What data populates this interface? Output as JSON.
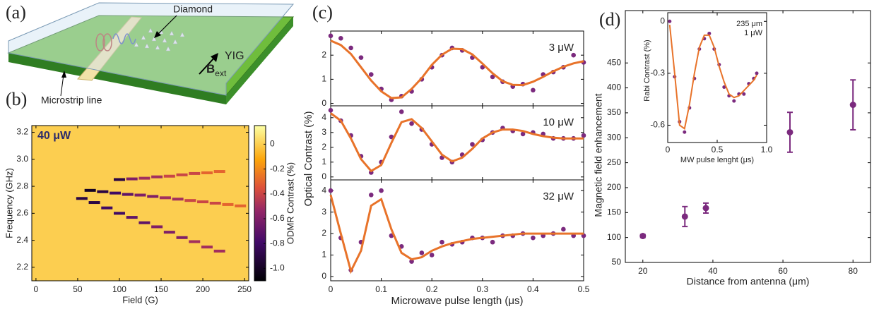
{
  "chart_data": [
    {
      "type": "diagram",
      "panel_label": "(a)",
      "labels": {
        "diamond": "Diamond",
        "yig": "YIG",
        "b": "B",
        "b_sub": "ext",
        "microstrip": "Microstrip line"
      }
    },
    {
      "type": "heatmap",
      "panel_label": "(b)",
      "annotation": "40 μW",
      "xlabel": "Field (G)",
      "ylabel": "Frequency (GHz)",
      "colorbar_label": "ODMR Contrast (%)",
      "xlim": [
        -5,
        255
      ],
      "xticks": [
        0,
        50,
        100,
        150,
        200,
        250
      ],
      "ylim": [
        2.1,
        3.25
      ],
      "yticks": [
        2.2,
        2.4,
        2.6,
        2.8,
        {
          "value": 3,
          "label": "3.0"
        },
        3.2
      ],
      "zlim": [
        -1.1,
        0.15
      ],
      "zticks": [
        0,
        -0.2,
        -0.4,
        -0.6,
        -0.8,
        {
          "value": -1,
          "label": "-1.0"
        }
      ],
      "background_value": 0,
      "series": [
        {
          "x": [
            100,
            115,
            130,
            145,
            160,
            175,
            190,
            205,
            220
          ],
          "y": [
            2.85,
            2.855,
            2.86,
            2.87,
            2.875,
            2.885,
            2.895,
            2.9,
            2.91
          ],
          "values": [
            -0.9,
            -0.6,
            -0.5,
            -0.5,
            -0.4,
            -0.4,
            -0.4,
            -0.3,
            -0.3
          ]
        },
        {
          "x": [
            65,
            80,
            95,
            110,
            125,
            140,
            155,
            170,
            185,
            200,
            215,
            230,
            245
          ],
          "y": [
            2.77,
            2.76,
            2.75,
            2.74,
            2.735,
            2.725,
            2.715,
            2.705,
            2.695,
            2.685,
            2.675,
            2.665,
            2.655
          ],
          "values": [
            -1.0,
            -0.9,
            -0.8,
            -0.7,
            -0.6,
            -0.6,
            -0.5,
            -0.5,
            -0.4,
            -0.4,
            -0.4,
            -0.3,
            -0.3
          ]
        },
        {
          "x": [
            55,
            70,
            85,
            100,
            115,
            130,
            145,
            160,
            175,
            190,
            205,
            220
          ],
          "y": [
            2.71,
            2.68,
            2.64,
            2.6,
            2.57,
            2.53,
            2.5,
            2.46,
            2.42,
            2.39,
            2.35,
            2.32
          ],
          "values": [
            -0.9,
            -0.9,
            -0.8,
            -0.8,
            -0.7,
            -0.7,
            -0.6,
            -0.6,
            -0.6,
            -0.5,
            -0.5,
            -0.5
          ]
        }
      ]
    },
    {
      "type": "line",
      "panel_label": "(c)",
      "xlabel": "Microwave pulse length (μs)",
      "ylabel": "Optical Contrast (%)",
      "xlim": [
        0,
        0.5
      ],
      "xticks": [
        0,
        0.1,
        0.2,
        0.3,
        0.4,
        0.5
      ],
      "x": [
        0,
        0.02,
        0.04,
        0.06,
        0.08,
        0.1,
        0.12,
        0.14,
        0.16,
        0.18,
        0.2,
        0.22,
        0.24,
        0.26,
        0.28,
        0.3,
        0.32,
        0.34,
        0.36,
        0.38,
        0.4,
        0.42,
        0.44,
        0.46,
        0.48,
        0.5
      ],
      "point_color": "#7b2a7e",
      "fit_color": "#e8732a",
      "panels": [
        {
          "annotation": "3 μW",
          "ylim": [
            -0.1,
            3
          ],
          "yticks": [
            0,
            1,
            2
          ],
          "points": [
            2.8,
            2.7,
            2.3,
            1.9,
            1.2,
            0.6,
            0.15,
            0.3,
            0.5,
            1.0,
            1.5,
            2.0,
            2.3,
            2.2,
            1.9,
            1.5,
            1.1,
            0.9,
            0.7,
            0.8,
            0.55,
            1.2,
            1.3,
            1.5,
            2.0,
            1.7
          ],
          "fit": [
            2.6,
            2.42,
            2.05,
            1.5,
            0.95,
            0.5,
            0.22,
            0.25,
            0.6,
            1.05,
            1.6,
            2.02,
            2.27,
            2.25,
            2.03,
            1.65,
            1.25,
            0.92,
            0.77,
            0.76,
            0.9,
            1.1,
            1.33,
            1.52,
            1.66,
            1.75
          ]
        },
        {
          "annotation": "10 μW",
          "ylim": [
            -0.2,
            4.8
          ],
          "yticks": [
            0,
            1,
            2,
            3,
            4
          ],
          "points": [
            4.5,
            3.8,
            2.8,
            1.4,
            0.3,
            1.0,
            2.7,
            4.4,
            3.6,
            3.2,
            2.2,
            1.3,
            1.0,
            1.5,
            2.2,
            2.5,
            3.0,
            3.3,
            3.1,
            2.9,
            3.0,
            2.9,
            2.6,
            2.6,
            2.6,
            2.8
          ],
          "fit": [
            4.3,
            3.8,
            2.6,
            1.2,
            0.4,
            0.8,
            2.3,
            3.7,
            3.9,
            3.3,
            2.4,
            1.5,
            1.05,
            1.3,
            1.9,
            2.6,
            3.0,
            3.2,
            3.2,
            3.1,
            2.9,
            2.75,
            2.65,
            2.6,
            2.6,
            2.6
          ]
        },
        {
          "annotation": "32 μW",
          "ylim": [
            -0.2,
            4.5
          ],
          "yticks": [
            0,
            1,
            2,
            3,
            4
          ],
          "points": [
            4.0,
            1.8,
            0.3,
            1.6,
            3.8,
            4.0,
            1.9,
            1.4,
            0.7,
            1.1,
            1.0,
            1.6,
            1.5,
            1.6,
            1.8,
            1.8,
            1.6,
            1.9,
            1.9,
            2.0,
            1.8,
            1.9,
            2.0,
            2.2,
            1.9,
            1.9
          ],
          "fit": [
            3.8,
            2.0,
            0.25,
            1.2,
            3.3,
            3.6,
            2.2,
            1.1,
            0.8,
            0.9,
            1.2,
            1.4,
            1.55,
            1.65,
            1.75,
            1.8,
            1.85,
            1.9,
            1.95,
            2.0,
            2.0,
            2.0,
            2.0,
            2.0,
            2.0,
            2.0
          ]
        }
      ]
    },
    {
      "type": "errorbar",
      "panel_label": "(d)",
      "xlabel": "Distance from antenna (μm)",
      "ylabel": "Magnetic field enhancement",
      "xlim": [
        15,
        85
      ],
      "xticks": [
        20,
        40,
        60,
        80
      ],
      "ylim": [
        50,
        555
      ],
      "yticks": [
        50,
        100,
        150,
        200,
        250,
        300,
        350,
        400,
        450
      ],
      "color": "#7b2a7e",
      "x": [
        20,
        32,
        38,
        62,
        80
      ],
      "values": [
        103,
        142,
        159,
        311,
        366
      ],
      "errors": [
        3,
        20,
        10,
        40,
        50
      ],
      "inset": {
        "xlabel": "MW pulse lenght (μs)",
        "ylabel": "Rabi Contrast (%)",
        "annotations": [
          "235 μm",
          "1 μW"
        ],
        "xlim": [
          0,
          1
        ],
        "xticks": [
          0,
          0.5,
          {
            "value": 1,
            "label": "1.0"
          }
        ],
        "ylim": [
          -0.7,
          0.05
        ],
        "yticks": [
          0,
          -0.3,
          -0.6
        ],
        "x": [
          0.02,
          0.07,
          0.12,
          0.17,
          0.22,
          0.27,
          0.32,
          0.37,
          0.42,
          0.47,
          0.52,
          0.57,
          0.62,
          0.67,
          0.72,
          0.77,
          0.82,
          0.87,
          0.9
        ],
        "points": [
          0,
          -0.32,
          -0.58,
          -0.64,
          -0.5,
          -0.33,
          -0.16,
          -0.1,
          -0.07,
          -0.16,
          -0.25,
          -0.38,
          -0.43,
          -0.46,
          -0.42,
          -0.42,
          -0.36,
          -0.33,
          -0.3
        ],
        "fit": [
          -0.02,
          -0.3,
          -0.6,
          -0.62,
          -0.48,
          -0.3,
          -0.15,
          -0.08,
          -0.08,
          -0.15,
          -0.26,
          -0.35,
          -0.42,
          -0.44,
          -0.43,
          -0.4,
          -0.37,
          -0.34,
          -0.31
        ]
      }
    }
  ]
}
